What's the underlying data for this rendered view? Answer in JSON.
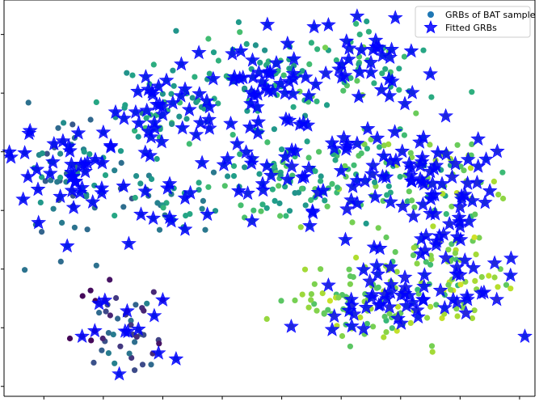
{
  "chart_data": {
    "type": "scatter",
    "title": "",
    "xlabel": "",
    "ylabel": "",
    "xlim": [
      0,
      100
    ],
    "ylim": [
      0,
      100
    ],
    "grid": false,
    "show_tick_labels": false,
    "legend_placement": "top-right",
    "series": [
      {
        "name": "GRBs of BAT sample",
        "marker": "circle",
        "color": "#1f77b4",
        "colormap": "viridis",
        "points": []
      },
      {
        "name": "Fitted GRBs",
        "marker": "star",
        "color": "#0000ff",
        "points": []
      }
    ]
  }
}
